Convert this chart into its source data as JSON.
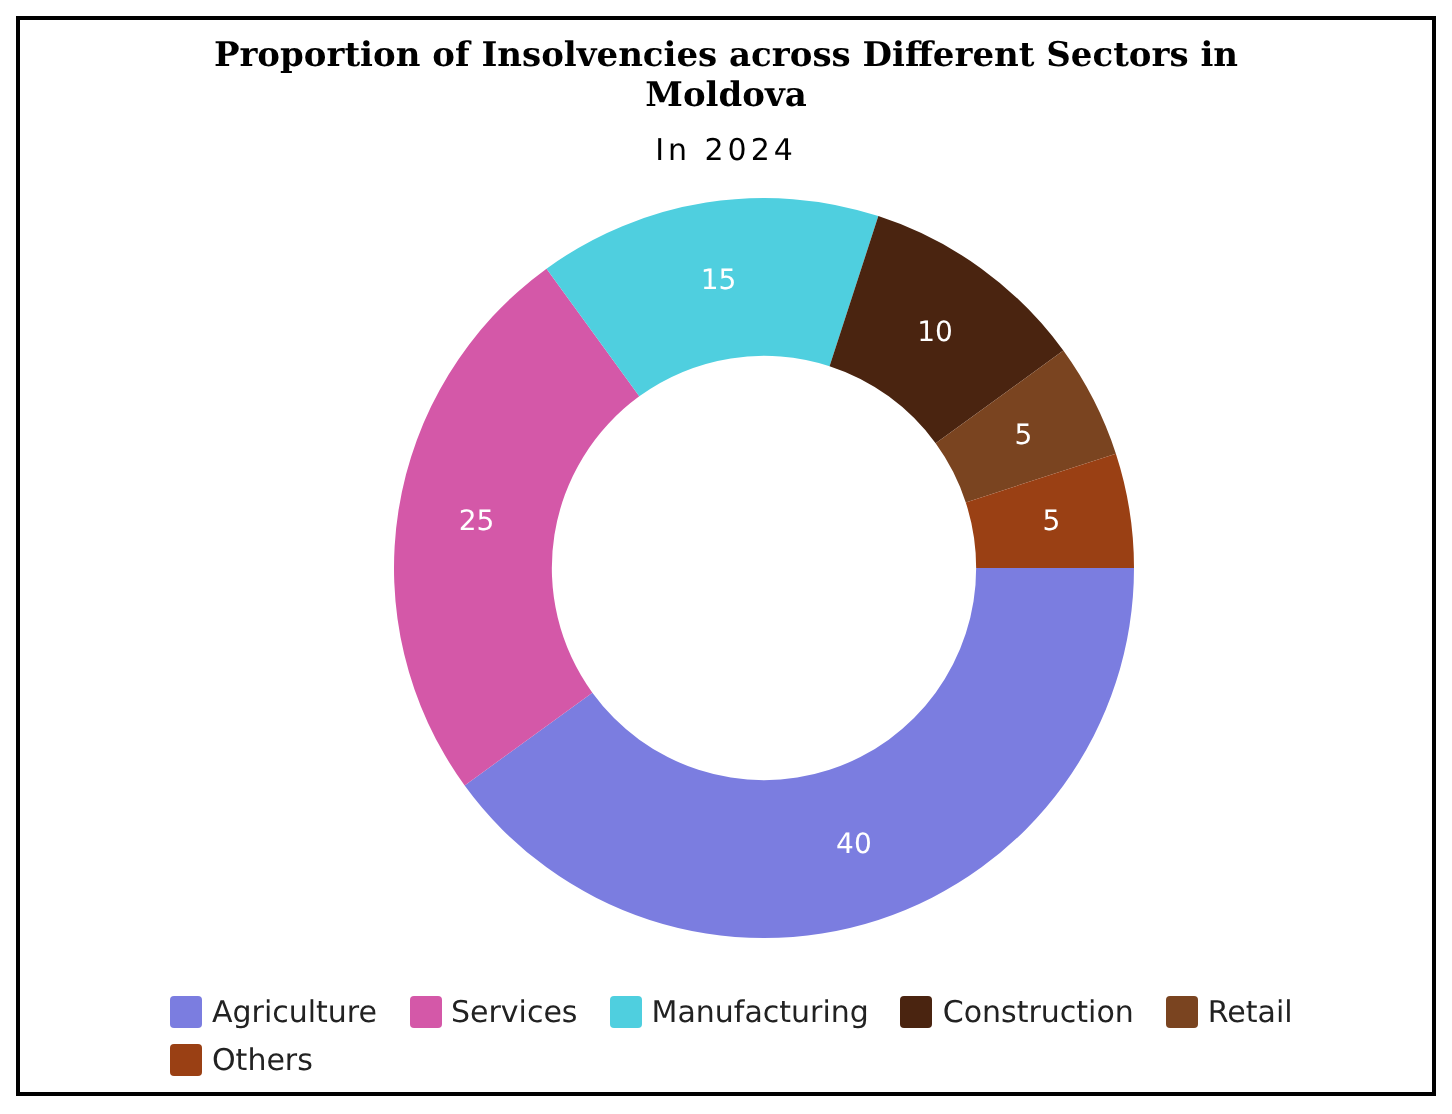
{
  "chart_data": {
    "type": "donut",
    "title": "Proportion of Insolvencies across Different Sectors in Moldova",
    "subtitle": "In 2024",
    "categories": [
      "Agriculture",
      "Services",
      "Manufacturing",
      "Construction",
      "Retail",
      "Others"
    ],
    "values": [
      40,
      25,
      15,
      10,
      5,
      5
    ],
    "colors": [
      "#7b7de0",
      "#d458a8",
      "#4fcfdf",
      "#4a2410",
      "#7a4420",
      "#9a4014"
    ],
    "data_labels": true,
    "legend": "bottom"
  }
}
